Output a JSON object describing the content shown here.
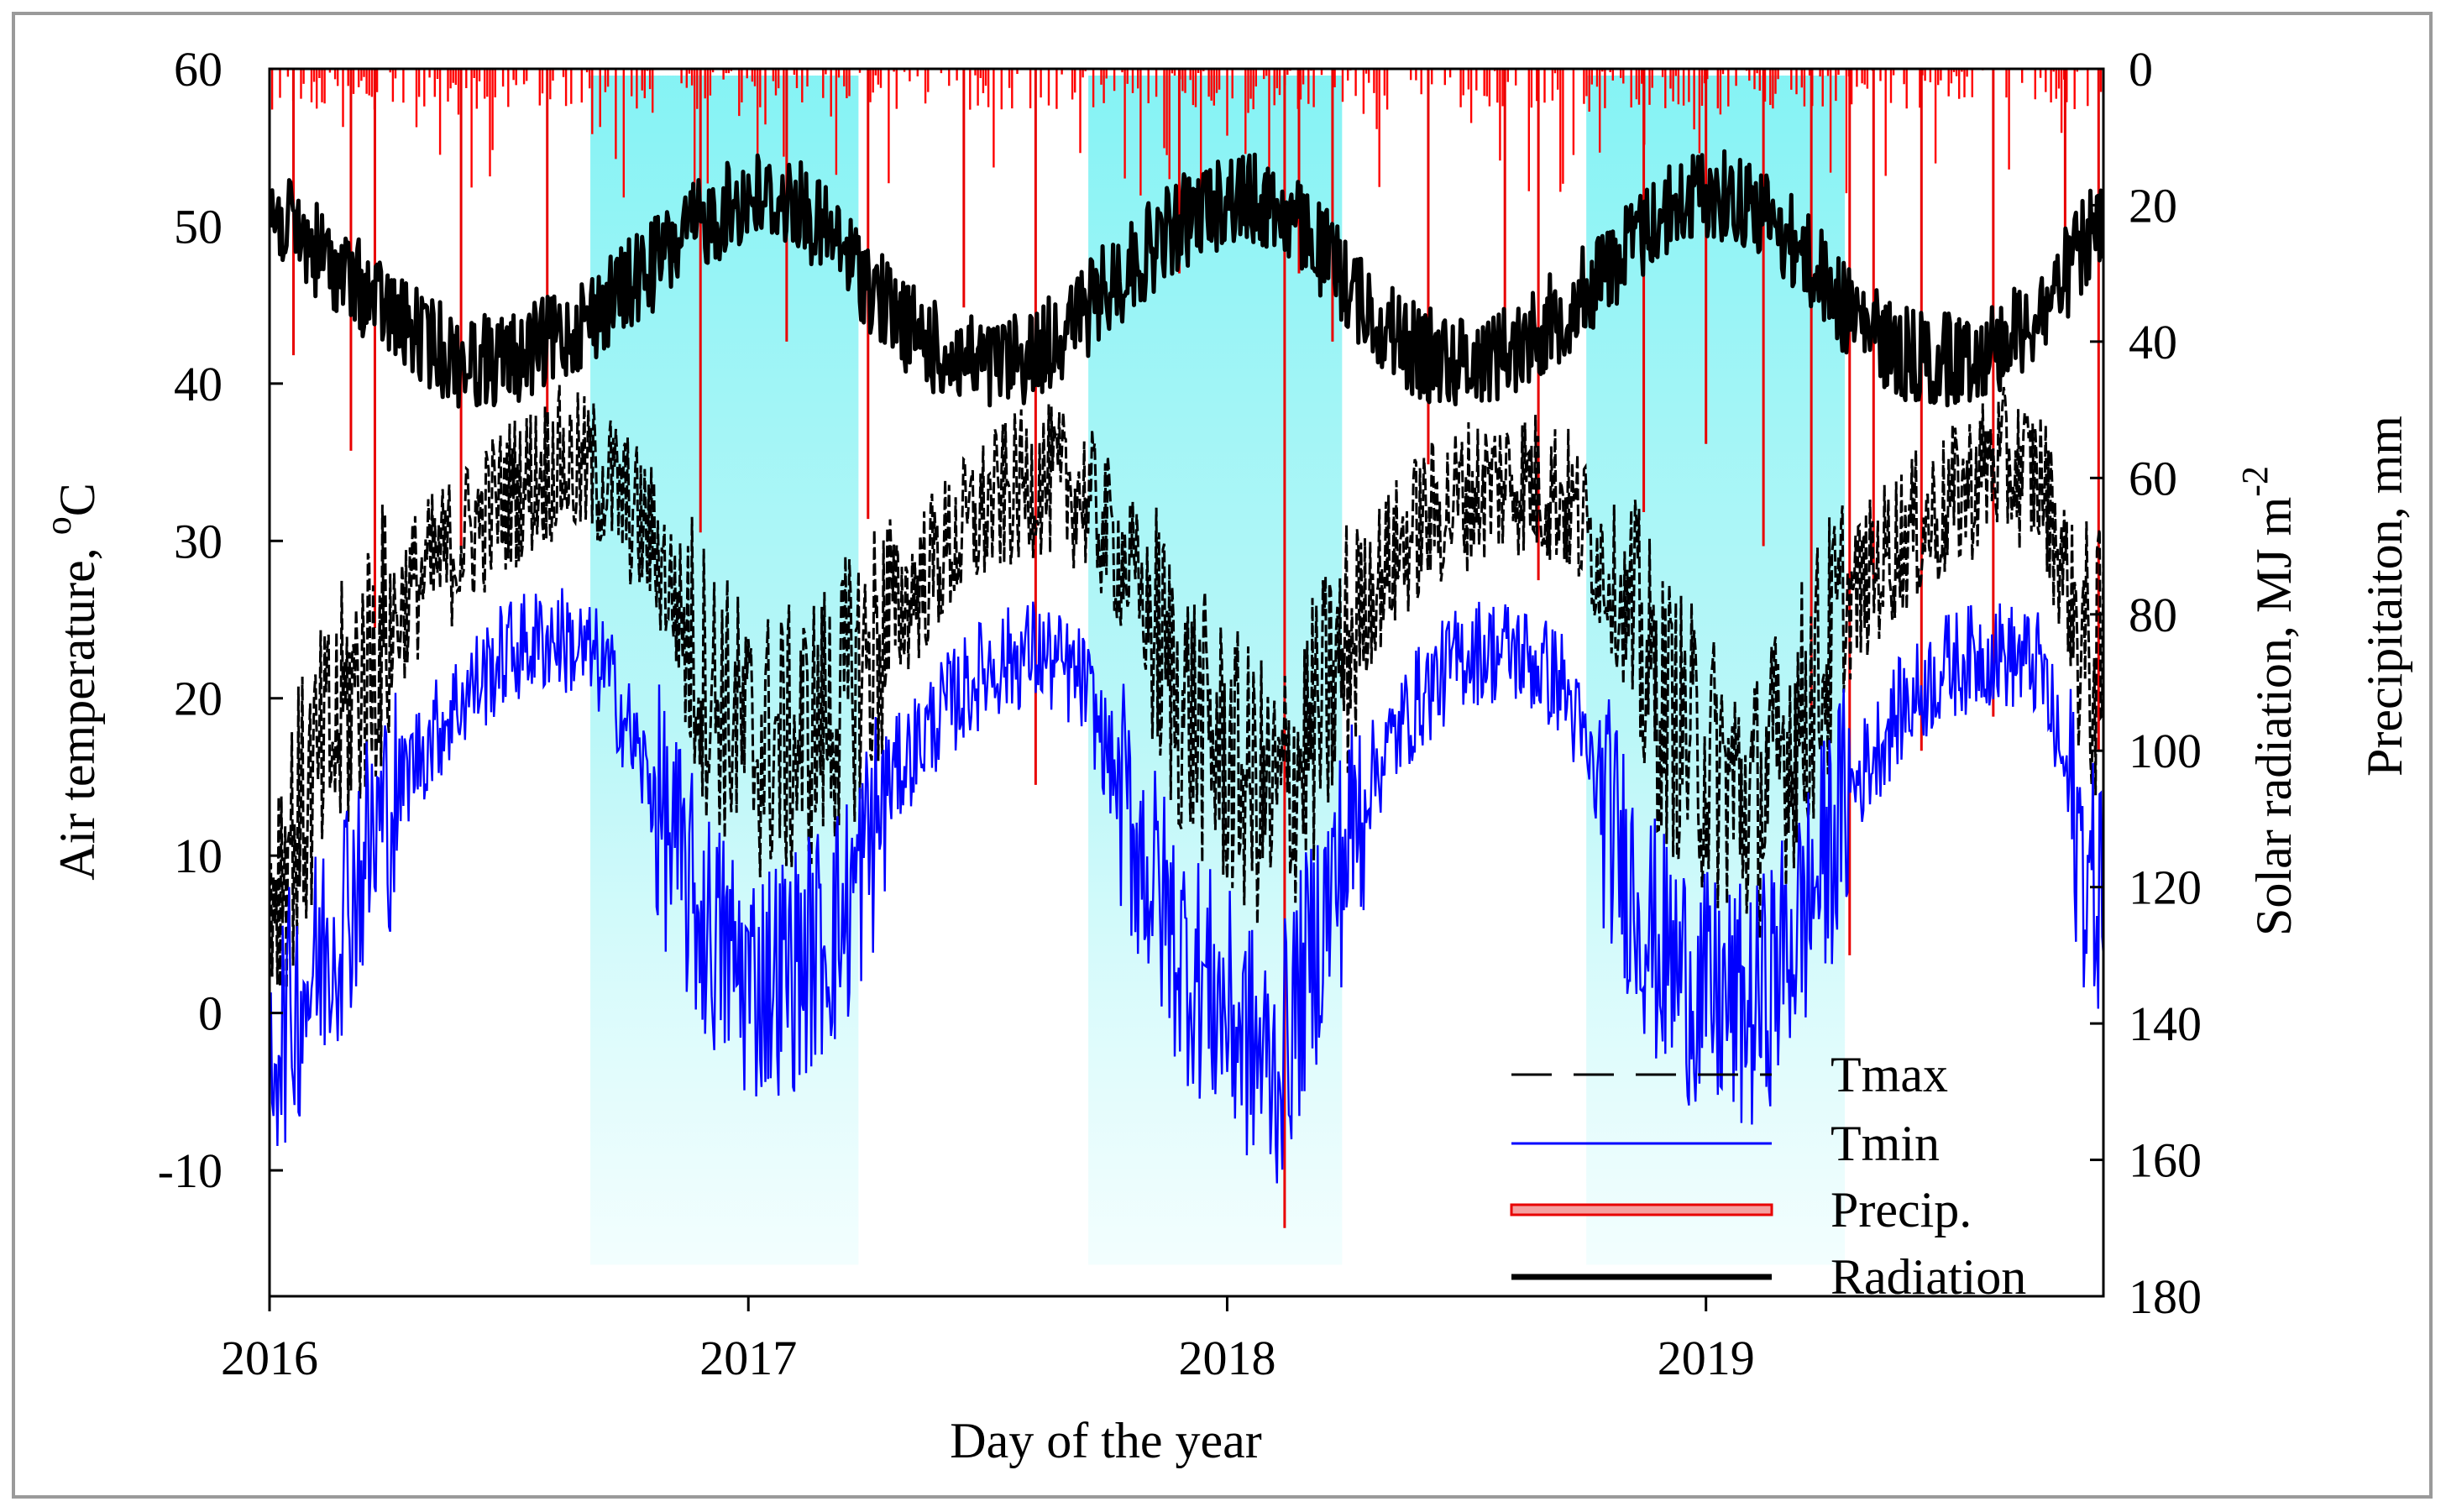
{
  "chart_data": {
    "type": "line",
    "title": "",
    "xlabel": "Day of the year",
    "ylabel_left_main": "Air temperature, ",
    "ylabel_left_unit_sup": "o",
    "ylabel_left_unit": "C",
    "ylabel_right": "Solar radiation, MJ m",
    "ylabel_right_sup": "-2",
    "ylabel_right_outer": "Precipitaiton, mm",
    "x_ticks": [
      "2016",
      "2017",
      "2018",
      "2019"
    ],
    "x_range_years": [
      2016.0,
      2019.83
    ],
    "y_left_ticks": [
      "-10",
      "0",
      "10",
      "20",
      "30",
      "40",
      "50",
      "60"
    ],
    "y_left_range": [
      -18,
      60
    ],
    "y_right_ticks": [
      "0",
      "20",
      "40",
      "60",
      "80",
      "100",
      "120",
      "140",
      "160",
      "180"
    ],
    "y_right_range": [
      0,
      180
    ],
    "y_right_inverted": true,
    "winter_shading_periods": [
      [
        2016.67,
        2017.23
      ],
      [
        2017.71,
        2018.24
      ],
      [
        2018.75,
        2019.29
      ]
    ],
    "legend": [
      {
        "label": "Tmax",
        "style": "dashed",
        "color": "#000000"
      },
      {
        "label": "Tmin",
        "style": "solid",
        "color": "#0000ff"
      },
      {
        "label": "Precip.",
        "style": "bar",
        "color": "#e80000"
      },
      {
        "label": "Radiation",
        "style": "solid-thick",
        "color": "#000000"
      }
    ],
    "series": [
      {
        "name": "Tmax",
        "axis": "left",
        "color": "#000000",
        "x": [
          2016.0,
          2016.1,
          2016.2,
          2016.3,
          2016.4,
          2016.5,
          2016.6,
          2016.7,
          2016.8,
          2016.9,
          2017.0,
          2017.1,
          2017.2,
          2017.3,
          2017.4,
          2017.5,
          2017.6,
          2017.7,
          2017.8,
          2017.9,
          2018.0,
          2018.1,
          2018.2,
          2018.3,
          2018.4,
          2018.5,
          2018.6,
          2018.7,
          2018.8,
          2018.9,
          2019.0,
          2019.1,
          2019.2,
          2019.3,
          2019.4,
          2019.5,
          2019.6,
          2019.7,
          2019.8
        ],
        "y": [
          8,
          15,
          22,
          27,
          30,
          33,
          35,
          34,
          30,
          22,
          17,
          17,
          20,
          25,
          29,
          32,
          34,
          33,
          28,
          20,
          16,
          13,
          19,
          27,
          31,
          33,
          34,
          33,
          28,
          20,
          16,
          13,
          19,
          26,
          30,
          32,
          35,
          34,
          22
        ]
      },
      {
        "name": "Tmin",
        "axis": "left",
        "color": "#0000ff",
        "x": [
          2016.0,
          2016.1,
          2016.2,
          2016.3,
          2016.4,
          2016.5,
          2016.6,
          2016.7,
          2016.8,
          2016.9,
          2017.0,
          2017.1,
          2017.2,
          2017.3,
          2017.4,
          2017.5,
          2017.6,
          2017.7,
          2017.8,
          2017.9,
          2018.0,
          2018.1,
          2018.2,
          2018.3,
          2018.4,
          2018.5,
          2018.6,
          2018.7,
          2018.8,
          2018.9,
          2019.0,
          2019.1,
          2019.2,
          2019.3,
          2019.4,
          2019.5,
          2019.6,
          2019.7,
          2019.8
        ],
        "y": [
          -2,
          3,
          10,
          16,
          20,
          23,
          24,
          22,
          14,
          6,
          2,
          3,
          6,
          15,
          19,
          22,
          23,
          21,
          12,
          4,
          0,
          -4,
          6,
          15,
          20,
          23,
          23,
          21,
          12,
          4,
          1,
          0,
          6,
          14,
          19,
          22,
          23,
          22,
          8
        ]
      },
      {
        "name": "Radiation",
        "axis": "right",
        "color": "#000000",
        "x": [
          2016.0,
          2016.1,
          2016.2,
          2016.3,
          2016.4,
          2016.5,
          2016.6,
          2016.7,
          2016.8,
          2016.9,
          2017.0,
          2017.1,
          2017.2,
          2017.3,
          2017.4,
          2017.5,
          2017.6,
          2017.7,
          2017.8,
          2017.9,
          2018.0,
          2018.1,
          2018.2,
          2018.3,
          2018.4,
          2018.5,
          2018.6,
          2018.7,
          2018.8,
          2018.9,
          2019.0,
          2019.1,
          2019.2,
          2019.3,
          2019.4,
          2019.5,
          2019.6,
          2019.7,
          2019.8
        ],
        "y": [
          18,
          24,
          30,
          36,
          40,
          40,
          37,
          32,
          26,
          20,
          16,
          17,
          24,
          33,
          39,
          41,
          39,
          33,
          26,
          20,
          16,
          17,
          24,
          33,
          39,
          40,
          38,
          33,
          26,
          19,
          15,
          17,
          24,
          33,
          39,
          40,
          38,
          33,
          22
        ]
      },
      {
        "name": "Precip.",
        "axis": "right",
        "color": "#e80000",
        "type": "bar",
        "x": [
          2016.05,
          2016.17,
          2016.22,
          2016.4,
          2016.58,
          2016.9,
          2017.08,
          2017.25,
          2017.45,
          2017.6,
          2017.9,
          2018.12,
          2018.15,
          2018.22,
          2018.42,
          2018.58,
          2018.65,
          2018.87,
          2019.0,
          2019.12,
          2019.22,
          2019.3,
          2019.35,
          2019.45,
          2019.6,
          2019.75,
          2019.82
        ],
        "y": [
          42,
          56,
          82,
          70,
          52,
          68,
          40,
          66,
          35,
          105,
          30,
          170,
          30,
          40,
          58,
          42,
          75,
          65,
          55,
          70,
          95,
          130,
          75,
          100,
          95,
          30,
          100
        ]
      }
    ]
  }
}
